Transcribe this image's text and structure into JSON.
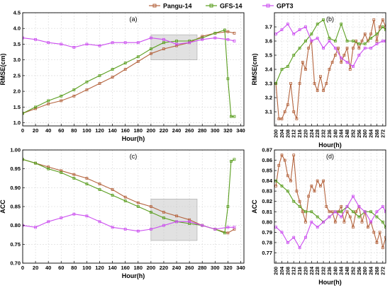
{
  "legend": [
    {
      "name": "Pangu-14",
      "color": "#b5653f",
      "marker": "square"
    },
    {
      "name": "GFS-14",
      "color": "#5a9e1f",
      "marker": "square"
    },
    {
      "name": "GPT3",
      "color": "#cc4ff0",
      "marker": "square"
    }
  ],
  "chart_data": [
    {
      "panel": "(a)",
      "type": "line",
      "xlabel": "Hour(h)",
      "ylabel": "RMSE(cm)",
      "xlim": [
        0,
        345
      ],
      "ylim": [
        0.9,
        4.5
      ],
      "xticks": [
        0,
        20,
        40,
        60,
        80,
        100,
        120,
        140,
        160,
        180,
        200,
        220,
        240,
        260,
        280,
        300,
        320,
        340
      ],
      "yticks": [
        1.0,
        1.5,
        2.0,
        2.5,
        3.0,
        3.5,
        4.0,
        4.5
      ],
      "highlight_box": {
        "x": [
          200,
          272
        ],
        "y": [
          3.0,
          3.8
        ]
      },
      "grid": true,
      "series": [
        {
          "name": "Pangu-14",
          "x": [
            0,
            20,
            40,
            60,
            80,
            100,
            120,
            140,
            160,
            180,
            200,
            220,
            240,
            260,
            280,
            300,
            320,
            330
          ],
          "values": [
            1.3,
            1.45,
            1.6,
            1.7,
            1.85,
            2.05,
            2.25,
            2.45,
            2.7,
            2.95,
            3.2,
            3.35,
            3.45,
            3.55,
            3.75,
            3.85,
            3.9,
            3.85
          ]
        },
        {
          "name": "GFS-14",
          "x": [
            0,
            20,
            40,
            60,
            80,
            100,
            120,
            140,
            160,
            180,
            200,
            220,
            240,
            260,
            280,
            300,
            315,
            320,
            325,
            330
          ],
          "values": [
            1.3,
            1.5,
            1.7,
            1.85,
            2.05,
            2.3,
            2.5,
            2.7,
            2.9,
            3.1,
            3.35,
            3.55,
            3.6,
            3.6,
            3.7,
            3.85,
            3.95,
            2.4,
            1.2,
            1.2
          ]
        },
        {
          "name": "GPT3",
          "x": [
            0,
            20,
            40,
            60,
            80,
            100,
            120,
            140,
            160,
            180,
            200,
            220,
            240,
            260,
            280,
            300,
            320,
            330
          ],
          "values": [
            3.7,
            3.65,
            3.55,
            3.5,
            3.4,
            3.5,
            3.45,
            3.55,
            3.55,
            3.55,
            3.7,
            3.65,
            3.5,
            3.55,
            3.65,
            3.7,
            3.65,
            3.6
          ]
        }
      ]
    },
    {
      "panel": "(b)",
      "type": "line",
      "xlabel": "Hour(h)",
      "ylabel": "RMSE(cm)",
      "xlim": [
        199,
        274
      ],
      "ylim": [
        3.0,
        3.8
      ],
      "xticks": [
        200,
        204,
        208,
        212,
        216,
        220,
        224,
        228,
        232,
        236,
        240,
        244,
        248,
        252,
        256,
        260,
        264,
        268,
        272
      ],
      "yticks": [
        3.1,
        3.2,
        3.3,
        3.4,
        3.5,
        3.6,
        3.7
      ],
      "grid": true,
      "series": [
        {
          "name": "Pangu-14",
          "x": [
            200,
            202,
            204,
            206,
            208,
            210,
            212,
            214,
            216,
            218,
            220,
            222,
            224,
            226,
            228,
            230,
            232,
            234,
            236,
            238,
            240,
            242,
            244,
            246,
            248,
            250,
            252,
            254,
            256,
            258,
            260,
            262,
            264,
            266,
            268,
            270,
            272,
            274
          ],
          "values": [
            3.3,
            3.05,
            3.05,
            3.1,
            3.15,
            3.3,
            3.1,
            3.05,
            3.3,
            3.45,
            3.4,
            3.55,
            3.6,
            3.3,
            3.25,
            3.35,
            3.25,
            3.3,
            3.4,
            3.45,
            3.5,
            3.55,
            3.45,
            3.5,
            3.55,
            3.4,
            3.55,
            3.6,
            3.55,
            3.6,
            3.65,
            3.6,
            3.65,
            3.75,
            3.6,
            3.7,
            3.75,
            3.7
          ]
        },
        {
          "name": "GFS-14",
          "x": [
            200,
            204,
            208,
            212,
            216,
            220,
            224,
            228,
            232,
            236,
            240,
            244,
            248,
            252,
            256,
            260,
            264,
            268,
            272,
            274
          ],
          "values": [
            3.3,
            3.4,
            3.42,
            3.5,
            3.55,
            3.6,
            3.65,
            3.72,
            3.75,
            3.62,
            3.6,
            3.72,
            3.6,
            3.6,
            3.58,
            3.58,
            3.62,
            3.65,
            3.7,
            3.68
          ]
        },
        {
          "name": "GPT3",
          "x": [
            200,
            204,
            208,
            212,
            216,
            220,
            224,
            228,
            232,
            236,
            240,
            244,
            248,
            252,
            256,
            260,
            264,
            268,
            272,
            274
          ],
          "values": [
            3.65,
            3.68,
            3.72,
            3.65,
            3.68,
            3.7,
            3.6,
            3.62,
            3.55,
            3.6,
            3.55,
            3.48,
            3.45,
            3.42,
            3.5,
            3.55,
            3.55,
            3.58,
            3.6,
            3.6
          ]
        }
      ]
    },
    {
      "panel": "(c)",
      "type": "line",
      "xlabel": "Hour(h)",
      "ylabel": "ACC",
      "xlim": [
        0,
        345
      ],
      "ylim": [
        0.7,
        1.0
      ],
      "xticks": [
        0,
        20,
        40,
        60,
        80,
        100,
        120,
        140,
        160,
        180,
        200,
        220,
        240,
        260,
        280,
        300,
        320,
        340
      ],
      "yticks": [
        0.7,
        0.75,
        0.8,
        0.85,
        0.9,
        0.95,
        1.0
      ],
      "highlight_box": {
        "x": [
          200,
          272
        ],
        "y": [
          0.76,
          0.87
        ]
      },
      "grid": true,
      "series": [
        {
          "name": "Pangu-14",
          "x": [
            0,
            20,
            40,
            60,
            80,
            100,
            120,
            140,
            160,
            180,
            200,
            220,
            240,
            260,
            280,
            300,
            320,
            330
          ],
          "values": [
            0.975,
            0.965,
            0.955,
            0.945,
            0.935,
            0.925,
            0.91,
            0.895,
            0.875,
            0.86,
            0.85,
            0.835,
            0.825,
            0.815,
            0.8,
            0.79,
            0.78,
            0.79
          ]
        },
        {
          "name": "GFS-14",
          "x": [
            0,
            20,
            40,
            60,
            80,
            100,
            120,
            140,
            160,
            180,
            200,
            220,
            240,
            260,
            280,
            300,
            315,
            320,
            325,
            330
          ],
          "values": [
            0.975,
            0.965,
            0.95,
            0.94,
            0.925,
            0.91,
            0.895,
            0.88,
            0.865,
            0.85,
            0.835,
            0.82,
            0.81,
            0.805,
            0.8,
            0.79,
            0.78,
            0.85,
            0.97,
            0.975
          ]
        },
        {
          "name": "GPT3",
          "x": [
            0,
            20,
            40,
            60,
            80,
            100,
            120,
            140,
            160,
            180,
            200,
            220,
            240,
            260,
            280,
            300,
            320,
            330
          ],
          "values": [
            0.8,
            0.795,
            0.81,
            0.82,
            0.83,
            0.825,
            0.81,
            0.795,
            0.79,
            0.785,
            0.79,
            0.8,
            0.81,
            0.81,
            0.8,
            0.79,
            0.795,
            0.795
          ]
        }
      ]
    },
    {
      "panel": "(d)",
      "type": "line",
      "xlabel": "Hour(h)",
      "ylabel": "ACC",
      "xlim": [
        199,
        274
      ],
      "ylim": [
        0.76,
        0.87
      ],
      "xticks": [
        200,
        204,
        208,
        212,
        216,
        220,
        224,
        228,
        232,
        236,
        240,
        244,
        248,
        252,
        256,
        260,
        264,
        268,
        272
      ],
      "yticks": [
        0.77,
        0.78,
        0.79,
        0.8,
        0.81,
        0.82,
        0.83,
        0.84,
        0.85,
        0.86,
        0.87
      ],
      "grid": true,
      "series": [
        {
          "name": "Pangu-14",
          "x": [
            200,
            202,
            204,
            206,
            208,
            210,
            212,
            214,
            216,
            218,
            220,
            222,
            224,
            226,
            228,
            230,
            232,
            234,
            236,
            238,
            240,
            242,
            244,
            246,
            248,
            250,
            252,
            254,
            256,
            258,
            260,
            262,
            264,
            266,
            268,
            270,
            272,
            274
          ],
          "values": [
            0.835,
            0.855,
            0.865,
            0.86,
            0.845,
            0.84,
            0.865,
            0.83,
            0.82,
            0.81,
            0.8,
            0.825,
            0.835,
            0.83,
            0.84,
            0.835,
            0.84,
            0.815,
            0.81,
            0.81,
            0.8,
            0.81,
            0.815,
            0.8,
            0.81,
            0.805,
            0.795,
            0.81,
            0.815,
            0.8,
            0.81,
            0.795,
            0.8,
            0.79,
            0.78,
            0.79,
            0.775,
            0.785
          ]
        },
        {
          "name": "GFS-14",
          "x": [
            200,
            204,
            208,
            212,
            216,
            220,
            224,
            228,
            232,
            236,
            240,
            244,
            248,
            252,
            256,
            260,
            264,
            268,
            272,
            274
          ],
          "values": [
            0.84,
            0.835,
            0.83,
            0.82,
            0.815,
            0.81,
            0.81,
            0.805,
            0.8,
            0.805,
            0.81,
            0.81,
            0.815,
            0.81,
            0.805,
            0.81,
            0.81,
            0.805,
            0.8,
            0.795
          ]
        },
        {
          "name": "GPT3",
          "x": [
            200,
            204,
            208,
            212,
            216,
            220,
            224,
            228,
            232,
            236,
            240,
            244,
            248,
            252,
            256,
            260,
            264,
            268,
            272,
            274
          ],
          "values": [
            0.795,
            0.79,
            0.78,
            0.785,
            0.775,
            0.785,
            0.8,
            0.795,
            0.8,
            0.805,
            0.81,
            0.805,
            0.815,
            0.825,
            0.815,
            0.81,
            0.8,
            0.81,
            0.815,
            0.81
          ]
        }
      ]
    }
  ]
}
